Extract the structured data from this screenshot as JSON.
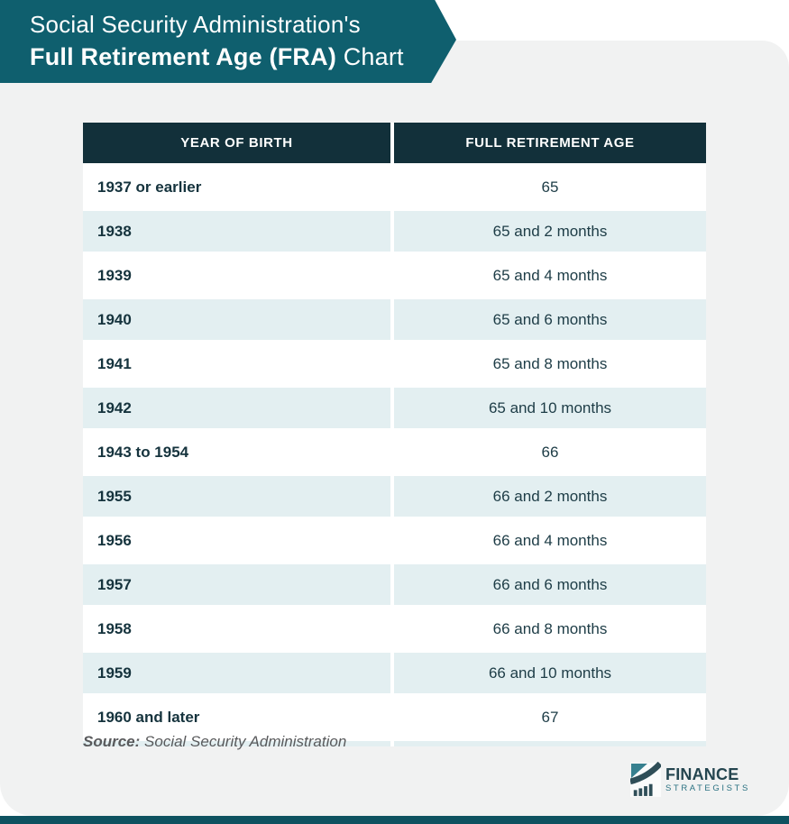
{
  "banner": {
    "line1": "Social Security Administration's",
    "line2_bold": "Full Retirement Age (FRA)",
    "line2_rest": " Chart"
  },
  "chart_data": {
    "type": "table",
    "title": "Social Security Administration's Full Retirement Age (FRA) Chart",
    "columns": [
      "YEAR OF BIRTH",
      "FULL RETIREMENT AGE"
    ],
    "rows": [
      [
        "1937 or earlier",
        "65"
      ],
      [
        "1938",
        "65 and 2 months"
      ],
      [
        "1939",
        "65 and 4 months"
      ],
      [
        "1940",
        "65 and 6 months"
      ],
      [
        "1941",
        "65 and 8 months"
      ],
      [
        "1942",
        "65 and 10 months"
      ],
      [
        "1943 to 1954",
        "66"
      ],
      [
        "1955",
        "66 and 2 months"
      ],
      [
        "1956",
        "66 and 4 months"
      ],
      [
        "1957",
        "66 and 6 months"
      ],
      [
        "1958",
        "66 and 8 months"
      ],
      [
        "1959",
        "66 and 10 months"
      ],
      [
        "1960 and later",
        "67"
      ]
    ],
    "source": "Social Security Administration",
    "layout_hints": {
      "alternating_rows": true,
      "header_position": "top"
    }
  },
  "source_note": {
    "label": "Source:",
    "text": "Social Security Administration"
  },
  "logo": {
    "line1": "FINANCE",
    "line2": "STRATEGISTS"
  },
  "colors": {
    "banner_teal": "#0f5f6e",
    "header_dark": "#12303a",
    "row_alt": "#e3eff1",
    "row_white": "#ffffff",
    "text_dark": "#15333d",
    "card_gray": "#f1f2f2",
    "bottom_bar": "#0e5260",
    "source_gray": "#595a5c",
    "logo_dark": "#2f4e58",
    "logo_teal": "#37808f"
  }
}
